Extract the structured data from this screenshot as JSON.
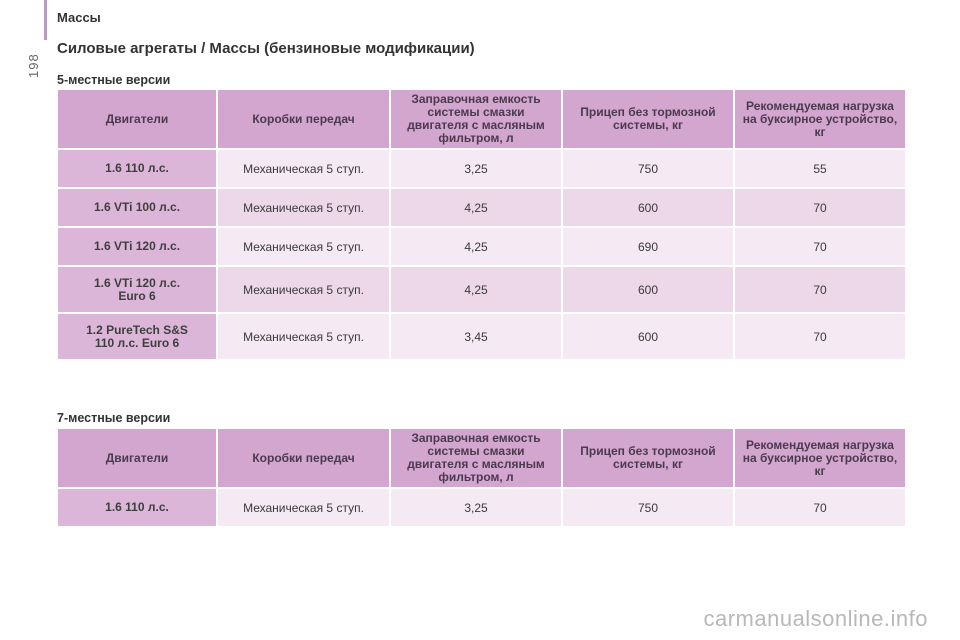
{
  "page": {
    "number": "198",
    "section_header": "Массы",
    "main_title": "Силовые агрегаты / Массы (бензиновые модификации)",
    "watermark": "carmanualsonline.info"
  },
  "table5": {
    "subtitle": "5-местные версии",
    "headers": {
      "engine": "Двигатели",
      "gearbox": "Коробки передач",
      "oil": "Заправочная емкость системы смазки двигателя с масляным фильтром, л",
      "trailer": "Прицеп без тормозной системы, кг",
      "towbar": "Рекомендуемая нагрузка на буксирное устройство, кг"
    },
    "rows": [
      {
        "engine": "1.6 110 л.с.",
        "gearbox": "Механическая 5 ступ.",
        "oil": "3,25",
        "trailer": "750",
        "towbar": "55"
      },
      {
        "engine": "1.6 VTi 100 л.с.",
        "gearbox": "Механическая 5 ступ.",
        "oil": "4,25",
        "trailer": "600",
        "towbar": "70"
      },
      {
        "engine": "1.6 VTi 120 л.с.",
        "gearbox": "Механическая 5 ступ.",
        "oil": "4,25",
        "trailer": "690",
        "towbar": "70"
      },
      {
        "engine_line1": "1.6 VTi 120 л.с.",
        "engine_line2": "Euro 6",
        "gearbox": "Механическая 5 ступ.",
        "oil": "4,25",
        "trailer": "600",
        "towbar": "70"
      },
      {
        "engine_line1": "1.2 PureTech S&S",
        "engine_line2": "110 л.с. Euro 6",
        "gearbox": "Механическая 5 ступ.",
        "oil": "3,45",
        "trailer": "600",
        "towbar": "70"
      }
    ]
  },
  "table7": {
    "subtitle": "7-местные версии",
    "headers": {
      "engine": "Двигатели",
      "gearbox": "Коробки передач",
      "oil": "Заправочная емкость системы смазки двигателя с масляным фильтром, л",
      "trailer": "Прицеп без тормозной системы, кг",
      "towbar": "Рекомендуемая нагрузка на буксирное устройство, кг"
    },
    "rows": [
      {
        "engine": "1.6 110 л.с.",
        "gearbox": "Механическая 5 ступ.",
        "oil": "3,25",
        "trailer": "750",
        "towbar": "70"
      }
    ]
  },
  "colors": {
    "header_bg": "#d3a6cf",
    "engine_cell_bg": "#dcb6d8",
    "row_light": "#f5e9f3",
    "row_dark": "#ecd8e9",
    "accent_rule": "#b99ac3"
  }
}
